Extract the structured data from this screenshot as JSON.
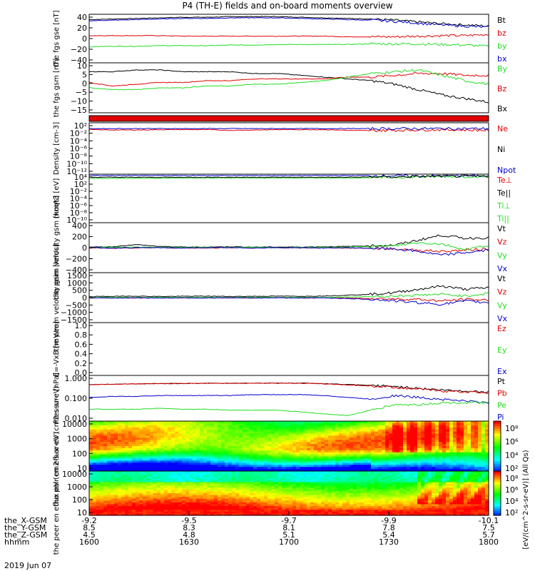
{
  "title": "P4 (TH-E) fields and on-board moments overview",
  "date": "2019 Jun 07",
  "colorbar_label": "[eV/(cm2-s-sr-eV)]",
  "colorbar_label2": "[eV/(cm^2-s-sr-eV)] (All Qs)",
  "colors": {
    "black": "#000000",
    "red": "#e00000",
    "green": "#22dd22",
    "blue": "#0000cc"
  },
  "xaxis": {
    "row_labels": [
      "the_X-GSM",
      "the_Y-GSM",
      "the_Z-GSM",
      "hhmm"
    ],
    "columns": [
      {
        "vals": [
          "-9.2",
          "8.5",
          "4.5",
          "1600"
        ]
      },
      {
        "vals": [
          "-9.5",
          "8.3",
          "4.8",
          "1630"
        ]
      },
      {
        "vals": [
          "-9.7",
          "8.1",
          "5.1",
          "1700"
        ]
      },
      {
        "vals": [
          "-9.9",
          "7.8",
          "5.4",
          "1730"
        ]
      },
      {
        "vals": [
          "-10.1",
          "7.5",
          "5.7",
          "1800"
        ]
      }
    ]
  },
  "chart_data": [
    {
      "type": "line",
      "ylabel": "the fgs gse [nT]",
      "yticks": [
        "40",
        "20",
        "0",
        "−20",
        "−40"
      ],
      "ylim": [
        -40,
        42
      ],
      "legend": [
        {
          "name": "Bt",
          "color": "black"
        },
        {
          "name": "bz",
          "color": "red"
        },
        {
          "name": "by",
          "color": "green"
        },
        {
          "name": "bx",
          "color": "blue"
        }
      ],
      "series": [
        {
          "name": "Bt",
          "color": "black",
          "values": [
            33,
            34,
            35,
            36,
            37,
            37,
            38,
            38,
            38,
            37,
            36,
            35,
            34,
            32,
            29,
            26,
            24,
            22
          ]
        },
        {
          "name": "bz",
          "color": "red",
          "values": [
            6,
            6,
            6,
            6,
            5,
            5,
            5,
            5,
            5,
            5,
            5,
            4,
            4,
            4,
            5,
            6,
            6,
            8
          ]
        },
        {
          "name": "by",
          "color": "green",
          "values": [
            -13,
            -12,
            -12,
            -11,
            -11,
            -11,
            -10,
            -10,
            -9,
            -9,
            -9,
            -9,
            -8,
            -8,
            -8,
            -9,
            -10,
            -12
          ]
        },
        {
          "name": "bx",
          "color": "blue",
          "values": [
            31,
            32,
            33,
            34,
            35,
            35,
            36,
            36,
            36,
            35,
            34,
            33,
            32,
            30,
            27,
            24,
            22,
            20
          ]
        }
      ]
    },
    {
      "type": "line",
      "ylabel": "the fgs gsm [nT]",
      "yticks": [
        "10",
        "5",
        "0",
        "−5",
        "−10",
        "−15"
      ],
      "ylim": [
        -18,
        10
      ],
      "legend": [
        {
          "name": "By",
          "color": "green"
        },
        {
          "name": "Bz",
          "color": "red"
        },
        {
          "name": "Bx",
          "color": "black"
        }
      ],
      "series": [
        {
          "name": "Bx",
          "color": "black",
          "values": [
            5,
            5,
            6,
            6,
            5,
            5,
            5,
            4,
            4,
            3,
            2,
            1,
            0,
            -2,
            -5,
            -8,
            -10,
            -12
          ]
        },
        {
          "name": "Bz",
          "color": "red",
          "values": [
            -1,
            -3,
            -2,
            -1,
            -1,
            0,
            0,
            1,
            1,
            1,
            1,
            2,
            2,
            3,
            4,
            4,
            3,
            3
          ]
        },
        {
          "name": "By",
          "color": "green",
          "values": [
            -4,
            -5,
            -5,
            -4,
            -4,
            -3,
            -3,
            -2,
            -2,
            -1,
            0,
            2,
            4,
            5,
            6,
            3,
            0,
            -2
          ]
        }
      ]
    },
    {
      "type": "bar",
      "ylabel": "",
      "note": "quality flag strip (red)"
    },
    {
      "type": "line",
      "ylabel": "Density [cm-3]",
      "ylog": true,
      "yticks": [
        "10²",
        "10⁻²",
        "10⁻⁴",
        "10⁻⁶",
        "10⁻⁸",
        "10⁻¹⁰",
        "10⁻¹²"
      ],
      "ylim": [
        -13,
        2
      ],
      "legend": [
        {
          "name": "Ne",
          "color": "red"
        },
        {
          "name": "Ni",
          "color": "black"
        },
        {
          "name": "Npot",
          "color": "blue"
        }
      ],
      "series": [
        {
          "name": "Ne",
          "color": "red",
          "values": [
            0,
            -0.1,
            -0.1,
            0,
            0,
            0,
            -0.2,
            -0.1,
            0,
            0,
            0,
            -0.2,
            -0.3,
            -0.2,
            -0.1,
            0,
            -0.1,
            -0.2
          ]
        },
        {
          "name": "Npot",
          "color": "blue",
          "values": [
            0.3,
            0.3,
            0.3,
            0.3,
            0.3,
            0.3,
            0.3,
            0.3,
            0.3,
            0.3,
            0.3,
            0.3,
            0.3,
            0.3,
            0.3,
            0.3,
            0.3,
            0.3
          ]
        }
      ]
    },
    {
      "type": "line",
      "ylabel": "moqt3 [eV]",
      "ylog": true,
      "yticks": [
        "10⁴",
        "10²",
        "10⁻²",
        "10⁻⁴",
        "10⁻⁶",
        "10⁻⁸",
        "10⁻¹⁰"
      ],
      "ylim": [
        -10,
        4
      ],
      "legend": [
        {
          "name": "Te⊥",
          "color": "red"
        },
        {
          "name": "Te||",
          "color": "black"
        },
        {
          "name": "Ti⊥",
          "color": "green"
        },
        {
          "name": "Ti||",
          "color": "green"
        }
      ],
      "series": [
        {
          "name": "Ti",
          "color": "blue",
          "values": [
            3.6,
            3.6,
            3.6,
            3.6,
            3.6,
            3.6,
            3.6,
            3.6,
            3.6,
            3.6,
            3.6,
            3.6,
            3.6,
            3.5,
            3.5,
            3.5,
            3.5,
            3.5
          ]
        },
        {
          "name": "Te",
          "color": "green",
          "values": [
            2.8,
            2.8,
            2.8,
            2.8,
            2.9,
            2.9,
            2.9,
            2.9,
            2.9,
            2.9,
            2.9,
            2.9,
            3.0,
            3.1,
            3.2,
            3.3,
            3.3,
            3.3
          ]
        },
        {
          "name": "Te||",
          "color": "black",
          "values": [
            3.1,
            3.1,
            3.1,
            3.1,
            3.1,
            3.1,
            3.1,
            3.1,
            3.1,
            3.1,
            3.1,
            3.1,
            3.2,
            3.2,
            3.3,
            3.4,
            3.4,
            3.4
          ]
        }
      ]
    },
    {
      "type": "line",
      "ylabel": "the peim velocity gsm [km/s]",
      "yticks": [
        "400",
        "200",
        "0",
        "−200",
        "−400"
      ],
      "ylim": [
        -400,
        400
      ],
      "legend": [
        {
          "name": "Vt",
          "color": "black"
        },
        {
          "name": "Vz",
          "color": "red"
        },
        {
          "name": "Vy",
          "color": "green"
        },
        {
          "name": "Vx",
          "color": "blue"
        }
      ],
      "series": [
        {
          "name": "Vt",
          "color": "black",
          "values": [
            10,
            15,
            50,
            20,
            10,
            10,
            15,
            10,
            10,
            10,
            15,
            20,
            30,
            40,
            120,
            200,
            150,
            160
          ]
        },
        {
          "name": "Vz",
          "color": "red",
          "values": [
            -5,
            -10,
            -5,
            0,
            -5,
            -5,
            0,
            -5,
            0,
            -5,
            0,
            -5,
            -10,
            -20,
            -40,
            -60,
            -40,
            -20
          ]
        },
        {
          "name": "Vy",
          "color": "green",
          "values": [
            5,
            5,
            10,
            5,
            5,
            5,
            5,
            5,
            0,
            5,
            5,
            10,
            20,
            30,
            80,
            60,
            -30,
            40
          ]
        },
        {
          "name": "Vx",
          "color": "blue",
          "values": [
            0,
            -5,
            0,
            0,
            -5,
            0,
            0,
            -5,
            0,
            0,
            -5,
            0,
            -10,
            -20,
            -60,
            -120,
            -80,
            -40
          ]
        }
      ]
    },
    {
      "type": "line",
      "ylabel": "the peem velocity gsm [km/s]",
      "yticks": [
        "1500",
        "1000",
        "500",
        "0",
        "−500",
        "−1000",
        "−1500"
      ],
      "ylim": [
        -1500,
        1500
      ],
      "legend": [
        {
          "name": "Vt",
          "color": "black"
        },
        {
          "name": "Vz",
          "color": "red"
        },
        {
          "name": "Vy",
          "color": "green"
        },
        {
          "name": "Vx",
          "color": "blue"
        }
      ],
      "series": [
        {
          "name": "Vt",
          "color": "black",
          "values": [
            60,
            80,
            90,
            70,
            80,
            90,
            70,
            80,
            90,
            80,
            100,
            150,
            200,
            300,
            500,
            700,
            500,
            600
          ]
        },
        {
          "name": "Vz",
          "color": "red",
          "values": [
            -20,
            -10,
            -20,
            -10,
            -20,
            -10,
            -20,
            -10,
            0,
            -20,
            -10,
            -30,
            -50,
            -80,
            -100,
            -200,
            -100,
            -150
          ]
        },
        {
          "name": "Vy",
          "color": "green",
          "values": [
            10,
            20,
            10,
            20,
            10,
            20,
            10,
            20,
            10,
            20,
            10,
            40,
            60,
            100,
            150,
            200,
            100,
            250
          ]
        },
        {
          "name": "Vx",
          "color": "blue",
          "values": [
            -10,
            -20,
            -10,
            -20,
            -10,
            -20,
            -10,
            -20,
            -10,
            -20,
            -10,
            -60,
            -100,
            -200,
            -300,
            -400,
            -200,
            -300
          ]
        }
      ]
    },
    {
      "type": "line",
      "ylabel": "E=-VxB [mV/m]",
      "yticks": [
        "1.0",
        "0.8",
        "0.6",
        "0.4",
        "0.2",
        "0.0"
      ],
      "ylim": [
        0,
        1
      ],
      "legend": [
        {
          "name": "Ez",
          "color": "red"
        },
        {
          "name": "Ey",
          "color": "green"
        },
        {
          "name": "Ex",
          "color": "blue"
        }
      ],
      "series": []
    },
    {
      "type": "line",
      "ylabel": "Pressure [nPa]",
      "ylog": true,
      "yticks": [
        "1.000",
        "0.100",
        "0.010"
      ],
      "ylim": [
        -2.5,
        0
      ],
      "legend": [
        {
          "name": "Pt",
          "color": "black"
        },
        {
          "name": "Pb",
          "color": "red"
        },
        {
          "name": "Pe",
          "color": "green"
        },
        {
          "name": "Pi",
          "color": "blue"
        }
      ],
      "series": [
        {
          "name": "Pt",
          "color": "black",
          "values": [
            -0.5,
            -0.48,
            -0.46,
            -0.45,
            -0.44,
            -0.43,
            -0.43,
            -0.42,
            -0.42,
            -0.42,
            -0.45,
            -0.5,
            -0.55,
            -0.6,
            -0.7,
            -0.8,
            -0.85,
            -0.9
          ]
        },
        {
          "name": "Pb",
          "color": "red",
          "values": [
            -0.5,
            -0.48,
            -0.46,
            -0.45,
            -0.44,
            -0.43,
            -0.43,
            -0.42,
            -0.42,
            -0.43,
            -0.46,
            -0.52,
            -0.58,
            -0.65,
            -0.75,
            -0.85,
            -0.9,
            -0.95
          ]
        },
        {
          "name": "Pi",
          "color": "blue",
          "values": [
            -1.2,
            -1.15,
            -1.15,
            -1.1,
            -1.1,
            -1.1,
            -1.1,
            -1.05,
            -1.05,
            -1.05,
            -1.1,
            -1.2,
            -1.3,
            -1.1,
            -1.2,
            -1.3,
            -1.4,
            -1.5
          ]
        },
        {
          "name": "Pe",
          "color": "green",
          "values": [
            -1.85,
            -1.85,
            -1.85,
            -1.8,
            -1.85,
            -1.85,
            -1.9,
            -1.9,
            -1.9,
            -2.0,
            -2.1,
            -2.2,
            -1.9,
            -1.6,
            -1.6,
            -1.5,
            -1.5,
            -1.5
          ]
        }
      ]
    },
    {
      "type": "heatmap",
      "ylabel": "the peir en eflux eV (cm2-s-sr-eV)",
      "yticks": [
        "10000",
        "1000",
        "100",
        "10"
      ],
      "ylog": true
    },
    {
      "type": "heatmap",
      "ylabel": "the peer en eflux eV (cm2-s-sr-eV)",
      "yticks": [
        "10000",
        "1000",
        "100",
        "10"
      ],
      "ylog": true
    }
  ],
  "colorbar": {
    "ticks": [
      "10⁸",
      "10⁶",
      "10⁴",
      "10²"
    ]
  }
}
